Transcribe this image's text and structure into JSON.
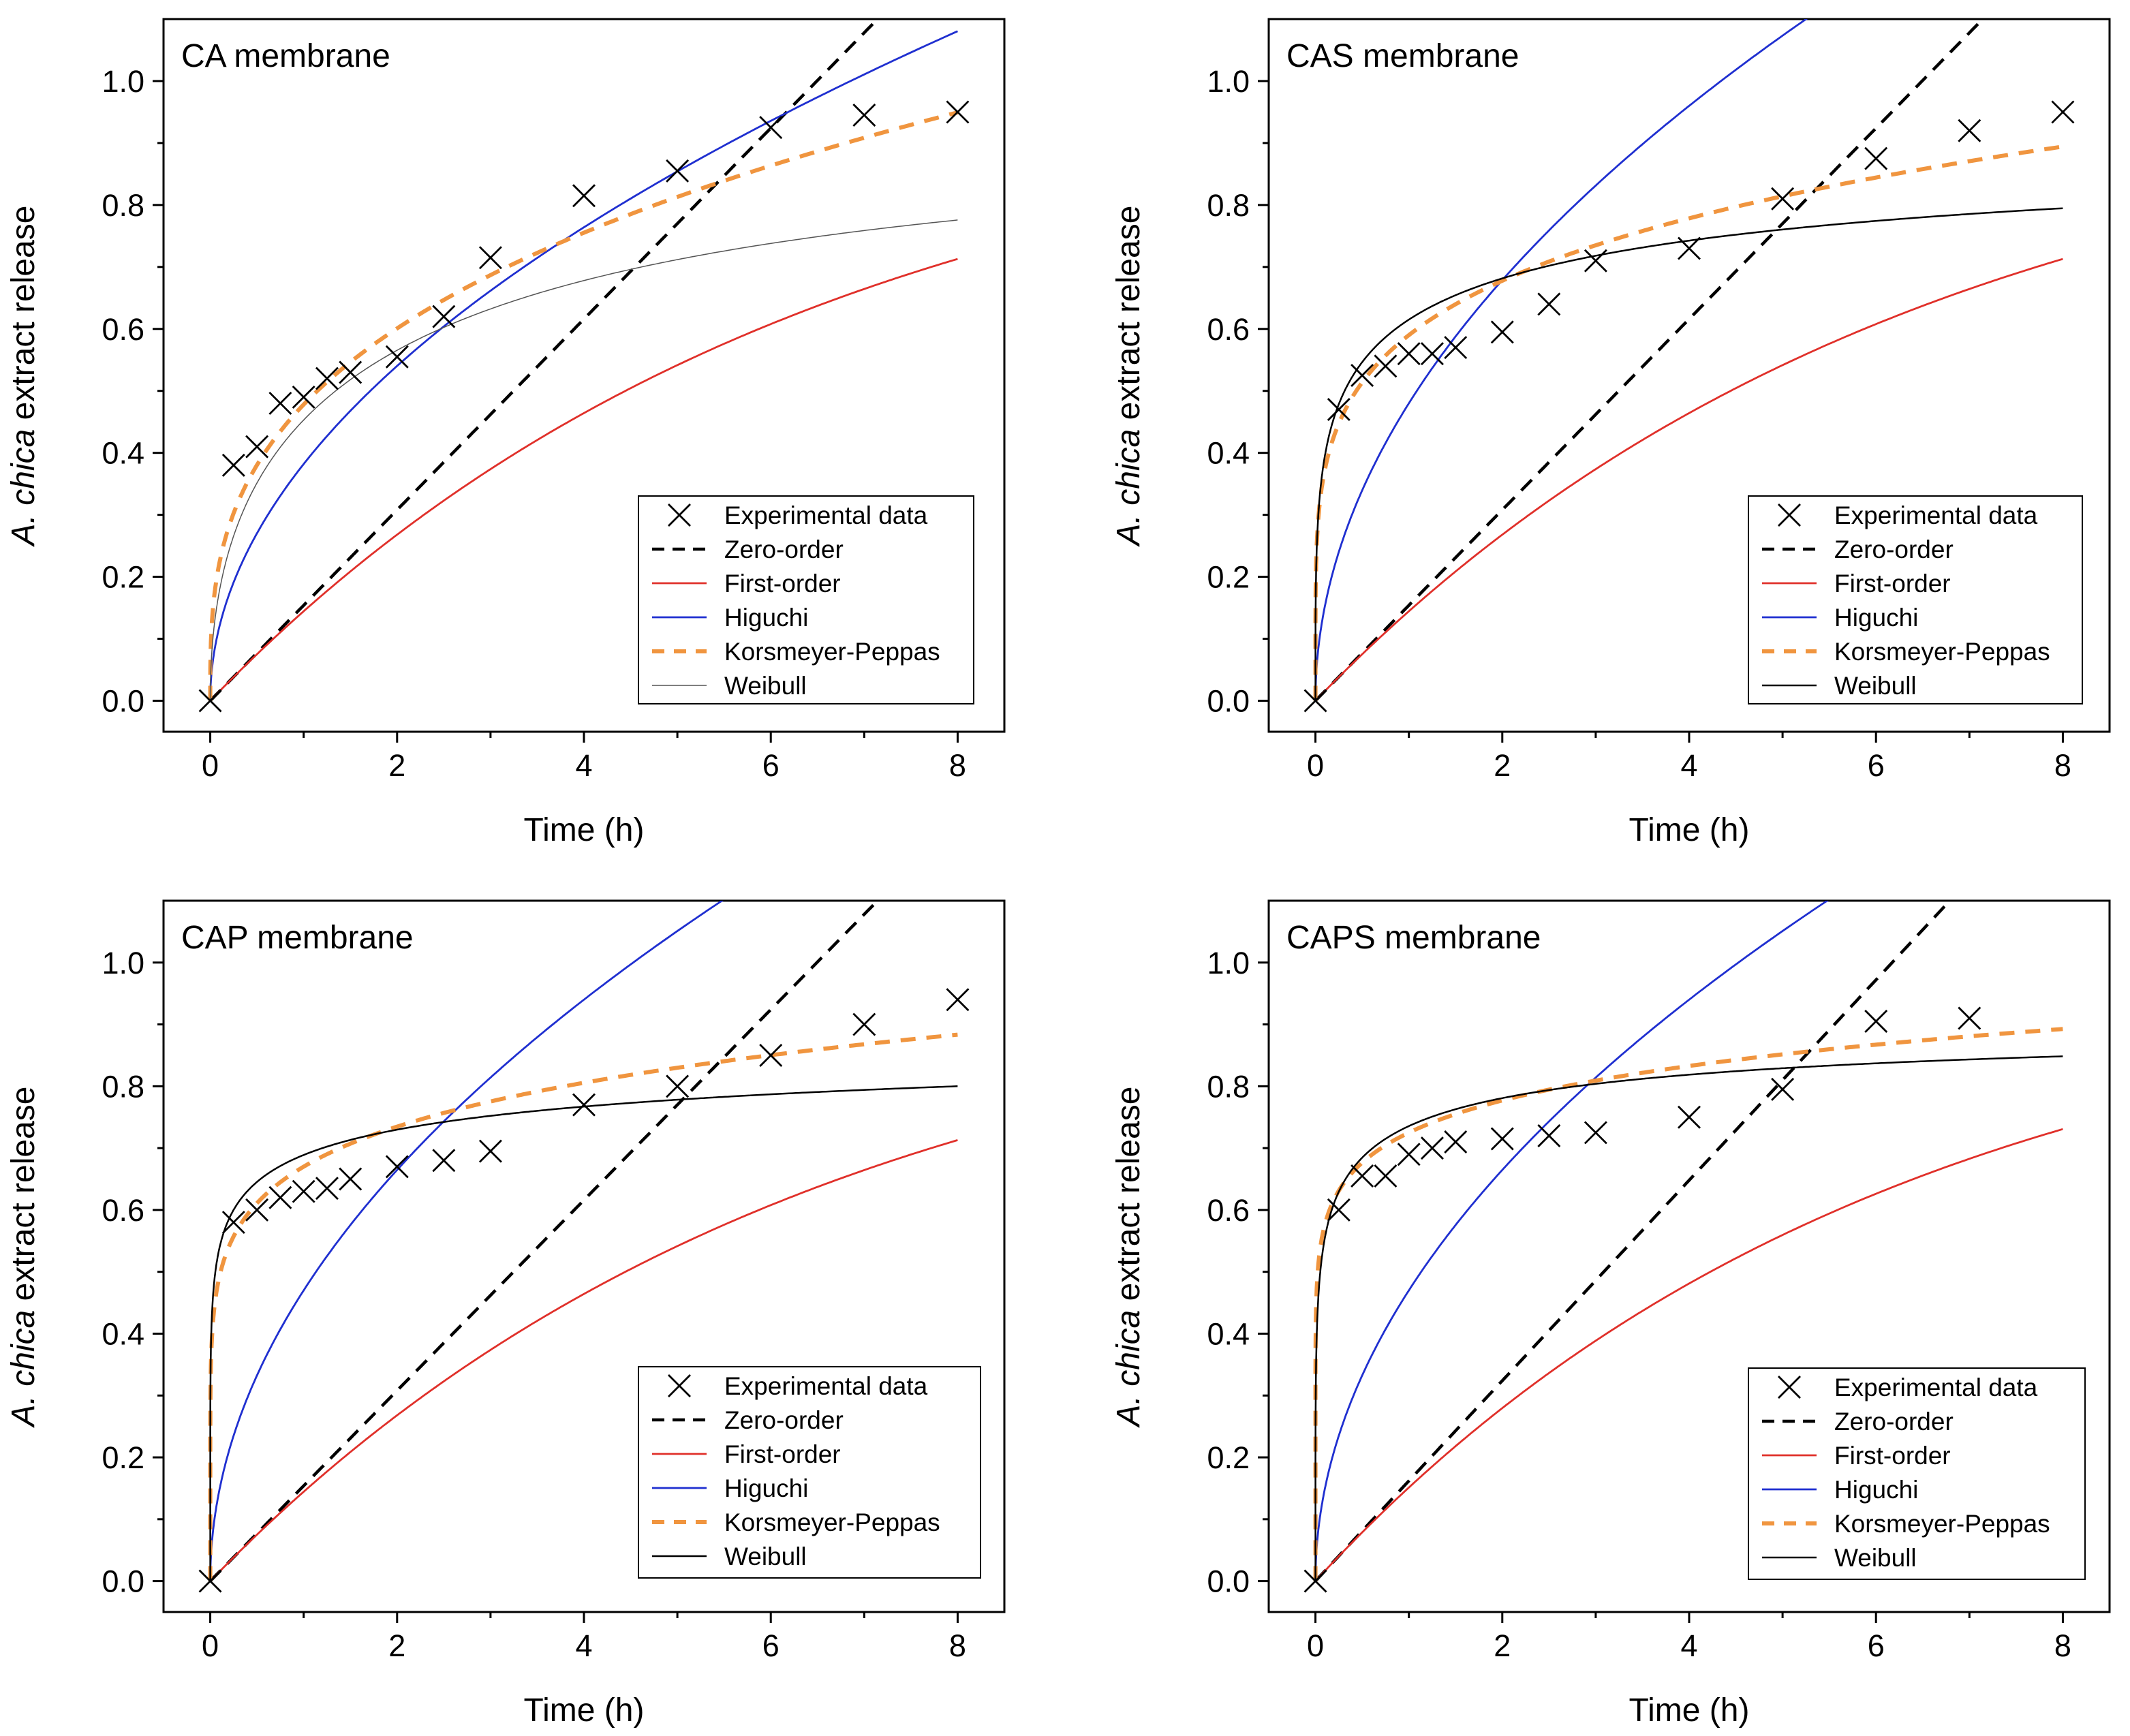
{
  "figure": {
    "xlabel": "Time (h)",
    "ylabel_italic": "A. chica",
    "ylabel_rest": " extract release",
    "legend": [
      {
        "key": "experimental",
        "label": "Experimental data"
      },
      {
        "key": "zero",
        "label": "Zero-order"
      },
      {
        "key": "first",
        "label": "First-order"
      },
      {
        "key": "higuchi",
        "label": "Higuchi"
      },
      {
        "key": "kp",
        "label": "Korsmeyer-Peppas"
      },
      {
        "key": "weibull",
        "label": "Weibull"
      }
    ],
    "x_ticks": [
      "0",
      "2",
      "4",
      "6",
      "8"
    ],
    "y_ticks": [
      "0.0",
      "0.2",
      "0.4",
      "0.6",
      "0.8",
      "1.0"
    ],
    "colors": {
      "experimental": "#000000",
      "zero": "#000000",
      "first": "#e0302a",
      "higuchi": "#1f2fd0",
      "kp": "#f0953f",
      "weibull": "#000000"
    }
  },
  "chart_data": [
    {
      "type": "scatter+line",
      "title": "CA membrane",
      "xlabel": "Time (h)",
      "ylabel": "A. chica extract release",
      "xlim": [
        -0.5,
        8.5
      ],
      "ylim": [
        -0.05,
        1.1
      ],
      "experimental": {
        "x": [
          0,
          0.25,
          0.5,
          0.75,
          1,
          1.25,
          1.5,
          2,
          2.5,
          3,
          4,
          5,
          6,
          7,
          8
        ],
        "y": [
          0.0,
          0.38,
          0.41,
          0.48,
          0.49,
          0.52,
          0.53,
          0.555,
          0.62,
          0.715,
          0.815,
          0.855,
          0.925,
          0.945,
          0.95
        ]
      },
      "models": {
        "zero": {
          "k": 0.154
        },
        "first": {
          "k": 0.156
        },
        "higuchi": {
          "k": 0.382
        },
        "kp": {
          "k": 0.478,
          "n": 0.33
        },
        "weibull": {
          "a": 0.9,
          "b": 0.5,
          "c": 0.7
        }
      },
      "weibull_color": "#555555",
      "weibull_width": 1.5
    },
    {
      "type": "scatter+line",
      "title": "CAS membrane",
      "xlabel": "Time (h)",
      "ylabel": "A. chica extract release",
      "xlim": [
        -0.5,
        8.5
      ],
      "ylim": [
        -0.05,
        1.1
      ],
      "experimental": {
        "x": [
          0,
          0.25,
          0.5,
          0.75,
          1,
          1.25,
          1.5,
          2,
          2.5,
          3,
          4,
          5,
          6,
          7,
          8
        ],
        "y": [
          0.0,
          0.47,
          0.525,
          0.54,
          0.56,
          0.56,
          0.57,
          0.595,
          0.64,
          0.71,
          0.73,
          0.81,
          0.875,
          0.92,
          0.95
        ]
      },
      "models": {
        "zero": {
          "k": 0.154
        },
        "first": {
          "k": 0.156
        },
        "higuchi": {
          "k": 0.48
        },
        "kp": {
          "k": 0.59,
          "n": 0.2
        },
        "weibull": {
          "a": 0.9,
          "b": 0.3,
          "c": 1.15
        }
      },
      "weibull_color": "#000000",
      "weibull_width": 2.5
    },
    {
      "type": "scatter+line",
      "title": "CAP membrane",
      "xlabel": "Time (h)",
      "ylabel": "A. chica extract release",
      "xlim": [
        -0.5,
        8.5
      ],
      "ylim": [
        -0.05,
        1.1
      ],
      "experimental": {
        "x": [
          0,
          0.25,
          0.5,
          0.75,
          1,
          1.25,
          1.5,
          2,
          2.5,
          3,
          4,
          5,
          6,
          7,
          8
        ],
        "y": [
          0.0,
          0.58,
          0.6,
          0.62,
          0.63,
          0.635,
          0.65,
          0.67,
          0.68,
          0.695,
          0.77,
          0.8,
          0.85,
          0.9,
          0.94
        ]
      },
      "models": {
        "zero": {
          "k": 0.154
        },
        "first": {
          "k": 0.156
        },
        "higuchi": {
          "k": 0.47
        },
        "kp": {
          "k": 0.67,
          "n": 0.133
        },
        "weibull": {
          "a": 0.9,
          "b": 0.2,
          "c": 1.45
        }
      },
      "weibull_color": "#000000",
      "weibull_width": 2.5
    },
    {
      "type": "scatter+line",
      "title": "CAPS membrane",
      "xlabel": "Time (h)",
      "ylabel": "A. chica extract release",
      "xlim": [
        -0.5,
        8.5
      ],
      "ylim": [
        -0.05,
        1.1
      ],
      "experimental": {
        "x": [
          0,
          0.25,
          0.5,
          0.75,
          1,
          1.25,
          1.5,
          2,
          2.5,
          3,
          4,
          5,
          6,
          7
        ],
        "y": [
          0.0,
          0.6,
          0.655,
          0.655,
          0.69,
          0.7,
          0.71,
          0.715,
          0.72,
          0.725,
          0.75,
          0.795,
          0.905,
          0.91
        ]
      },
      "models": {
        "zero": {
          "k": 0.162
        },
        "first": {
          "k": 0.164
        },
        "higuchi": {
          "k": 0.47
        },
        "kp": {
          "k": 0.725,
          "n": 0.1
        },
        "weibull": {
          "a": 0.9,
          "b": 0.25,
          "c": 1.7
        }
      },
      "weibull_color": "#000000",
      "weibull_width": 2.5
    }
  ]
}
